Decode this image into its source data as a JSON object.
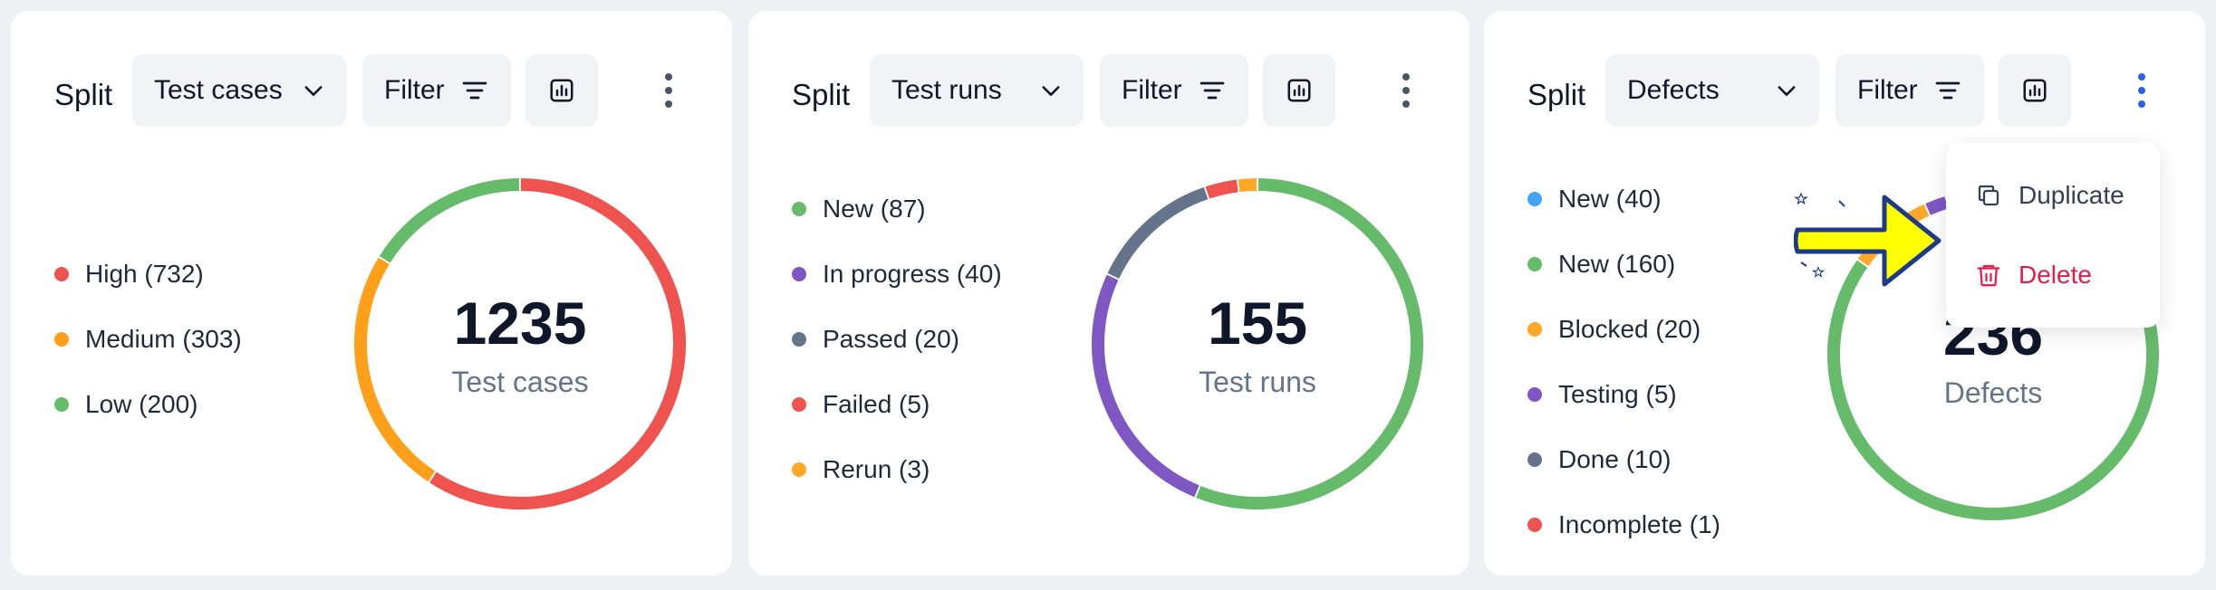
{
  "cards": [
    {
      "split_label": "Split",
      "select_value": "Test cases",
      "filter_label": "Filter",
      "legend": [
        {
          "label": "High (732)",
          "color": "#ef5350"
        },
        {
          "label": "Medium (303)",
          "color": "#ff9f1a"
        },
        {
          "label": "Low (200)",
          "color": "#66bb6a"
        }
      ],
      "total": "1235",
      "caption": "Test cases"
    },
    {
      "split_label": "Split",
      "select_value": "Test runs",
      "filter_label": "Filter",
      "legend": [
        {
          "label": "New (87)",
          "color": "#66bb6a"
        },
        {
          "label": "In progress (40)",
          "color": "#7e57c2"
        },
        {
          "label": "Passed (20)",
          "color": "#64748b"
        },
        {
          "label": "Failed (5)",
          "color": "#ef5350"
        },
        {
          "label": "Rerun (3)",
          "color": "#ffa726"
        }
      ],
      "total": "155",
      "caption": "Test runs"
    },
    {
      "split_label": "Split",
      "select_value": "Defects",
      "filter_label": "Filter",
      "legend": [
        {
          "label": "New (40)",
          "color": "#42a5f5"
        },
        {
          "label": "New (160)",
          "color": "#66bb6a"
        },
        {
          "label": "Blocked (20)",
          "color": "#ffa726"
        },
        {
          "label": "Testing (5)",
          "color": "#7e57c2"
        },
        {
          "label": "Done (10)",
          "color": "#64748b"
        },
        {
          "label": "Incomplete (1)",
          "color": "#ef5350"
        }
      ],
      "total": "236",
      "caption": "Defects"
    }
  ],
  "menu": {
    "duplicate_label": "Duplicate",
    "delete_label": "Delete"
  },
  "chart_data": [
    {
      "type": "pie",
      "categories": [
        "High",
        "Medium",
        "Low"
      ],
      "values": [
        732,
        303,
        200
      ],
      "colors": [
        "#ef5350",
        "#ff9f1a",
        "#66bb6a"
      ],
      "title": "1235"
    },
    {
      "type": "pie",
      "categories": [
        "New",
        "In progress",
        "Passed",
        "Failed",
        "Rerun"
      ],
      "values": [
        87,
        40,
        20,
        5,
        3
      ],
      "colors": [
        "#66bb6a",
        "#7e57c2",
        "#64748b",
        "#ef5350",
        "#ffa726"
      ],
      "title": "155"
    },
    {
      "type": "pie",
      "categories": [
        "New",
        "New",
        "Blocked",
        "Testing",
        "Done",
        "Incomplete"
      ],
      "values": [
        40,
        160,
        20,
        5,
        10,
        1
      ],
      "colors": [
        "#42a5f5",
        "#66bb6a",
        "#ffa726",
        "#7e57c2",
        "#64748b",
        "#ef5350"
      ],
      "title": "236"
    }
  ],
  "icons": {
    "select_chevron": "chevron-down-icon",
    "filter": "filter-icon",
    "chart": "bar-chart-icon",
    "more": "more-vertical-icon",
    "duplicate": "copy-icon",
    "delete": "trash-icon",
    "pointer": "arrow-right-icon"
  },
  "colors": {
    "accent_blue": "#2563eb",
    "delete_red": "#e11d48",
    "arrow_yellow": "#ffff00"
  }
}
